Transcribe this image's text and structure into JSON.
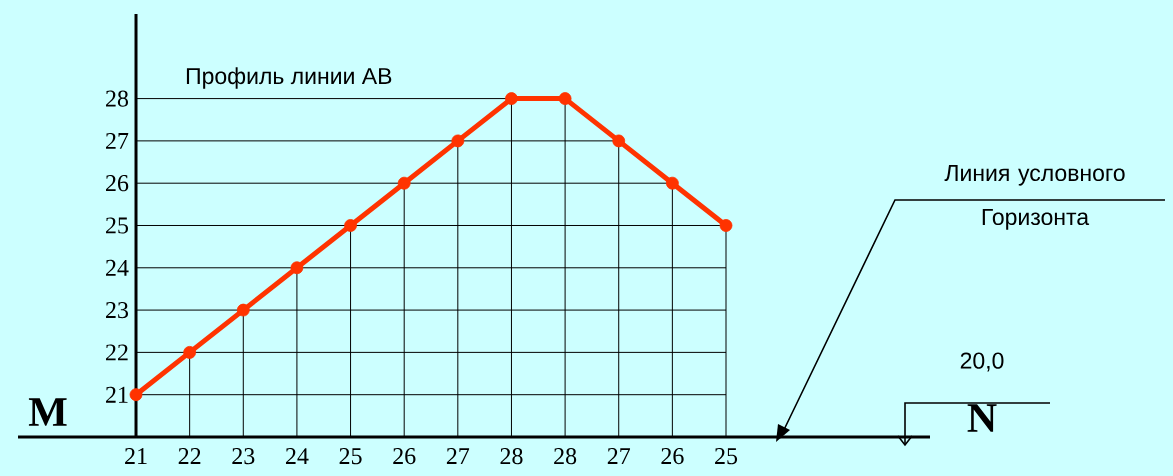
{
  "chart_data": {
    "type": "line",
    "title": "Профиль линии АВ",
    "categories": [
      "21",
      "22",
      "23",
      "24",
      "25",
      "26",
      "27",
      "28",
      "28",
      "27",
      "26",
      "25"
    ],
    "series": [
      {
        "color": "#ff3300",
        "marker": "none",
        "values": [
          21,
          22,
          23,
          24,
          25,
          26,
          27,
          28,
          28,
          27,
          26,
          25
        ]
      },
      {
        "type": "lollipop",
        "color": "#ff3300",
        "marker": "circle",
        "values": [
          21,
          22,
          23,
          24,
          25,
          26,
          27,
          28,
          28,
          27,
          26,
          25
        ]
      }
    ],
    "ylim": [
      20,
      30
    ],
    "yticks": [
      21,
      22,
      23,
      24,
      25,
      26,
      27,
      28
    ],
    "grid": true,
    "line_style": "solid",
    "annotations": [
      "M",
      "N",
      "20,0",
      "Линия условного Горизонта"
    ]
  }
}
